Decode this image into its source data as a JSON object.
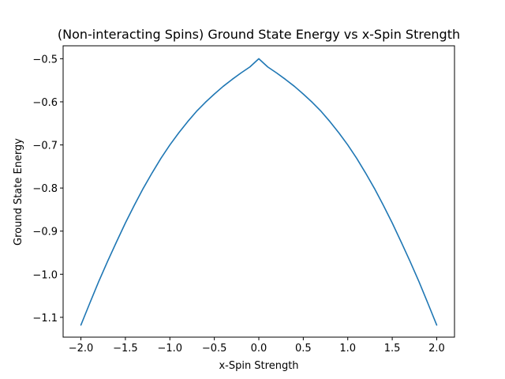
{
  "chart_data": {
    "type": "line",
    "title": "(Non-interacting Spins) Ground State Energy vs x-Spin Strength",
    "xlabel": "x-Spin Strength",
    "ylabel": "Ground State Energy",
    "xlim": [
      -2.2,
      2.2
    ],
    "ylim": [
      -1.146,
      -0.47
    ],
    "xticks": [
      -2.0,
      -1.5,
      -1.0,
      -0.5,
      0.0,
      0.5,
      1.0,
      1.5,
      2.0
    ],
    "xtick_labels": [
      "−2.0",
      "−1.5",
      "−1.0",
      "−0.5",
      "0.0",
      "0.5",
      "1.0",
      "1.5",
      "2.0"
    ],
    "yticks": [
      -0.5,
      -0.6,
      -0.7,
      -0.8,
      -0.9,
      -1.0,
      -1.1
    ],
    "ytick_labels": [
      "−0.5",
      "−0.6",
      "−0.7",
      "−0.8",
      "−0.9",
      "−1.0",
      "−1.1"
    ],
    "grid": false,
    "series": [
      {
        "color": "#1f77b4",
        "x": [
          -2.0,
          -1.9,
          -1.8,
          -1.7,
          -1.6,
          -1.5,
          -1.4,
          -1.3,
          -1.2,
          -1.1,
          -1.0,
          -0.9,
          -0.8,
          -0.7,
          -0.6,
          -0.5,
          -0.4,
          -0.3,
          -0.2,
          -0.1,
          0.0,
          0.1,
          0.2,
          0.3,
          0.4,
          0.5,
          0.6,
          0.7,
          0.8,
          0.9,
          1.0,
          1.1,
          1.2,
          1.3,
          1.4,
          1.5,
          1.6,
          1.7,
          1.8,
          1.9,
          2.0
        ],
        "y": [
          -1.118,
          -1.067,
          -1.017,
          -0.97,
          -0.925,
          -0.881,
          -0.84,
          -0.801,
          -0.765,
          -0.731,
          -0.7,
          -0.672,
          -0.646,
          -0.622,
          -0.601,
          -0.582,
          -0.564,
          -0.548,
          -0.533,
          -0.519,
          -0.5,
          -0.519,
          -0.533,
          -0.548,
          -0.564,
          -0.582,
          -0.601,
          -0.622,
          -0.646,
          -0.672,
          -0.7,
          -0.731,
          -0.765,
          -0.801,
          -0.84,
          -0.881,
          -0.925,
          -0.97,
          -1.017,
          -1.067,
          -1.118
        ]
      }
    ]
  }
}
